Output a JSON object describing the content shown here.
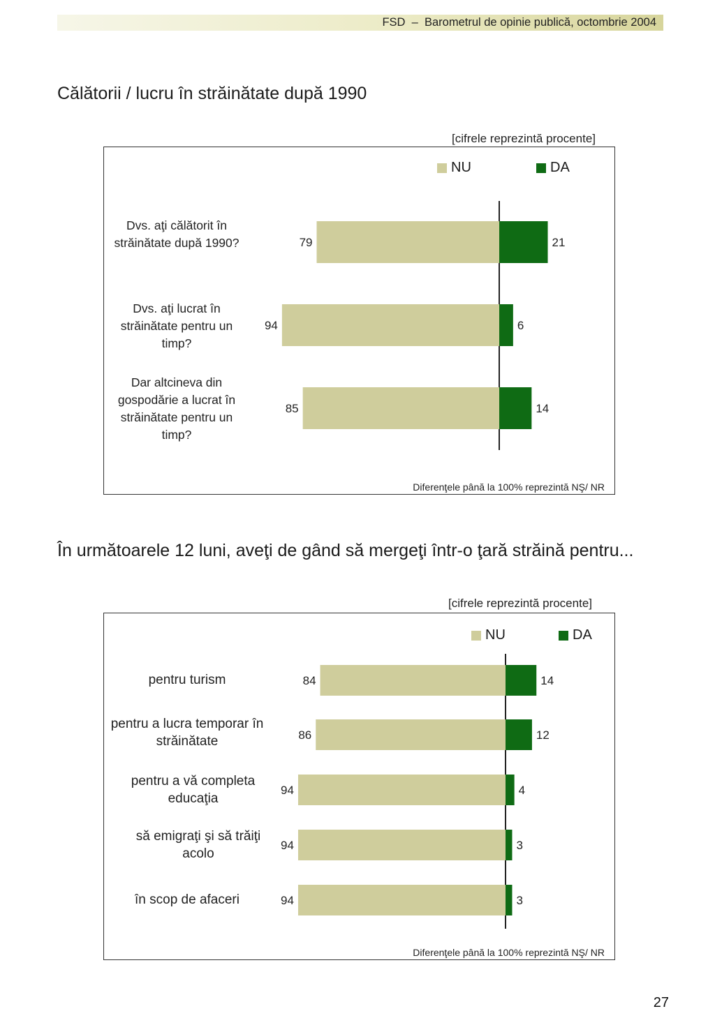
{
  "header": {
    "text": "FSD  –  Barometrul de opinie publică, octombrie 2004"
  },
  "colors": {
    "nu": "#cfcd9c",
    "da": "#0f6b14",
    "axis": "#222222",
    "frame": "#333333"
  },
  "page_number": "27",
  "chart_data": [
    {
      "type": "bar",
      "orientation": "horizontal-diverging",
      "title": "Călătorii / lucru în străinătate după 1990",
      "unit_note": "[cifrele reprezintă procente]",
      "footnote": "Diferenţele până la 100% reprezintă NŞ/ NR",
      "legend": [
        "NU",
        "DA"
      ],
      "categories": [
        "Dvs. aţi călătorit în străinătate după 1990?",
        "Dvs. aţi lucrat în străinătate pentru un timp?",
        "Dar altcineva din gospodărie a lucrat în străinătate pentru un timp?"
      ],
      "series": [
        {
          "name": "NU",
          "values": [
            79,
            94,
            85
          ]
        },
        {
          "name": "DA",
          "values": [
            21,
            6,
            14
          ]
        }
      ]
    },
    {
      "type": "bar",
      "orientation": "horizontal-diverging",
      "title": "În următoarele 12 luni, aveţi de gând să mergeţi într-o ţară străină pentru...",
      "unit_note": "[cifrele reprezintă procente]",
      "footnote": "Diferenţele până la 100% reprezintă NŞ/ NR",
      "legend": [
        "NU",
        "DA"
      ],
      "categories": [
        "pentru turism",
        "pentru a lucra temporar în străinătate",
        "pentru a vă completa educaţia",
        "să emigraţi şi să trăiţi acolo",
        "în scop de afaceri"
      ],
      "series": [
        {
          "name": "NU",
          "values": [
            84,
            86,
            94,
            94,
            94
          ]
        },
        {
          "name": "DA",
          "values": [
            14,
            12,
            4,
            3,
            3
          ]
        }
      ]
    }
  ]
}
